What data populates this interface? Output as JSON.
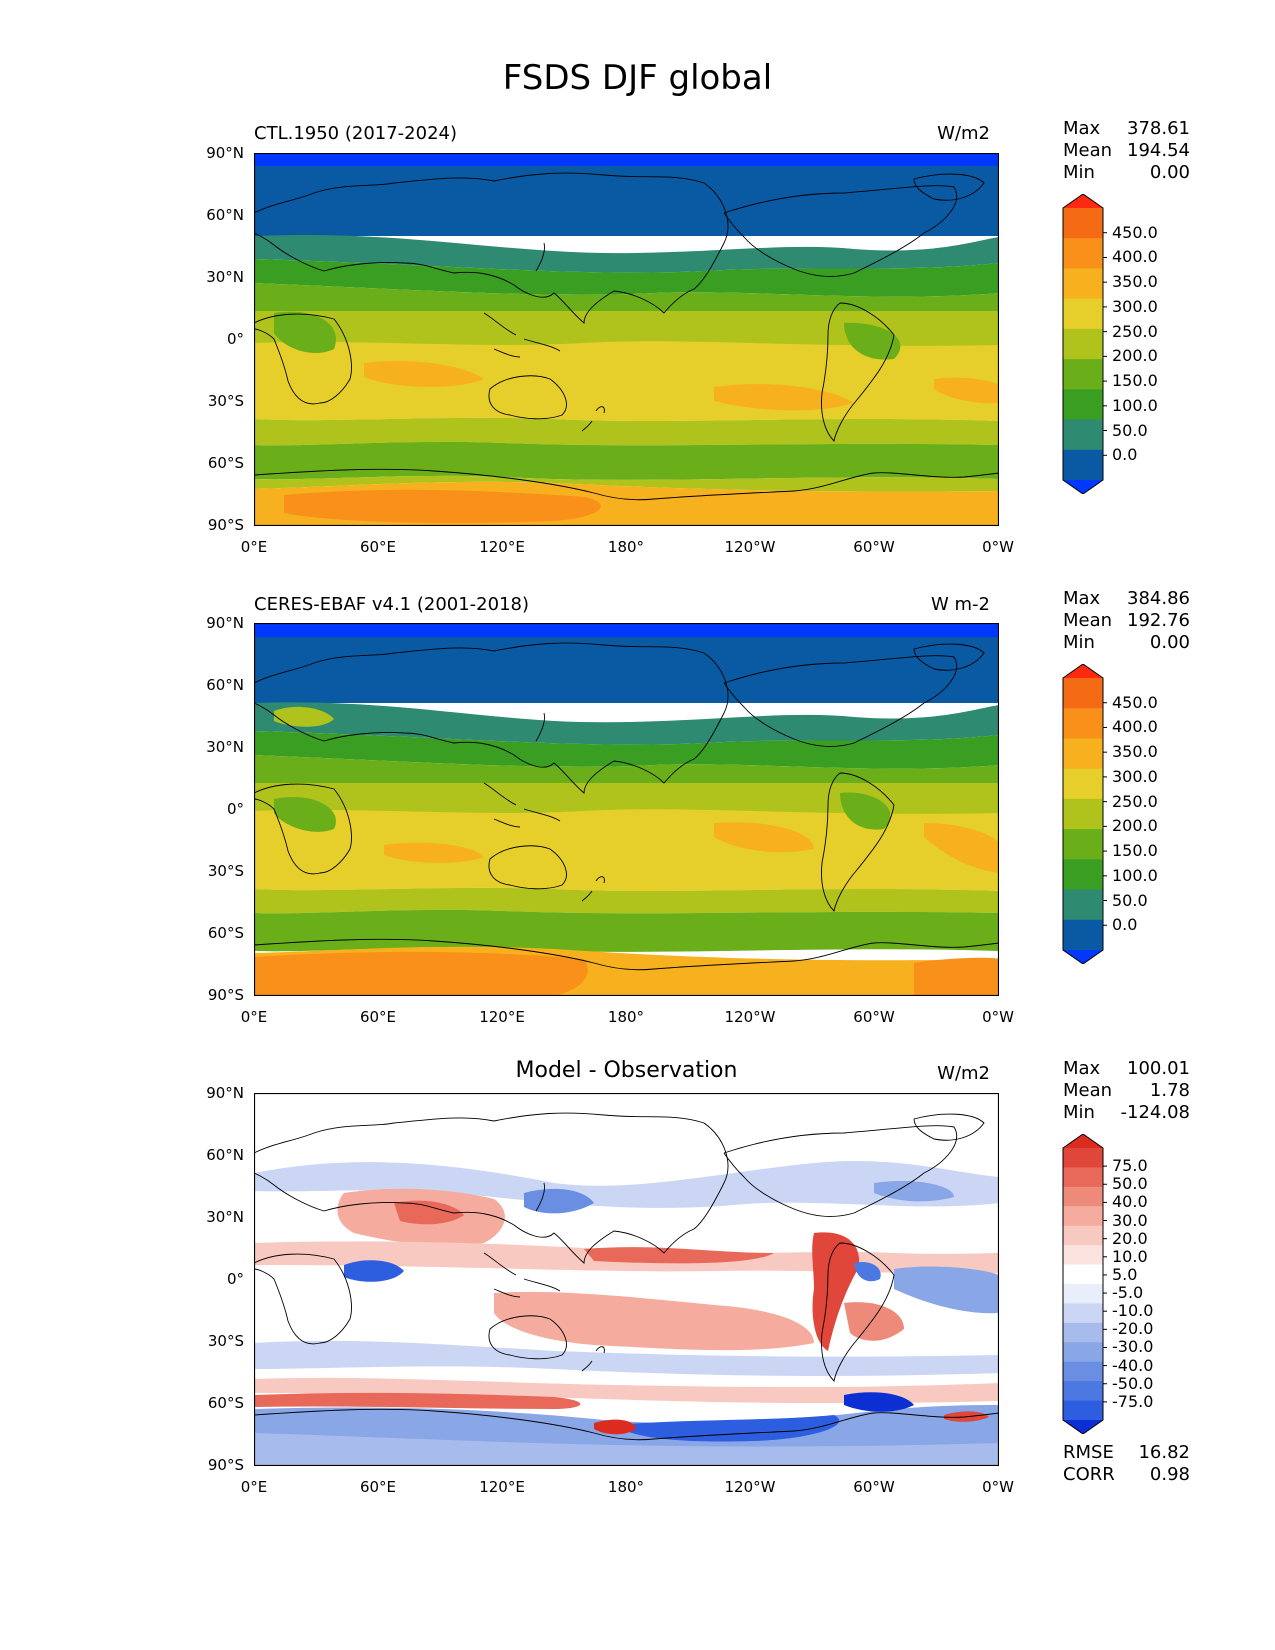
{
  "figure": {
    "title": "FSDS DJF global"
  },
  "colors": {
    "fsds": [
      "#0038ff",
      "#0a5aa3",
      "#2f8a72",
      "#3a9e23",
      "#6aaf1a",
      "#afc31c",
      "#e6cf2a",
      "#f7b11f",
      "#f8901a",
      "#f56a14",
      "#ff2a10"
    ],
    "diff": [
      "#0c2fd4",
      "#2d5ee0",
      "#4c78e2",
      "#6a8fe2",
      "#89a6e6",
      "#a8bbed",
      "#cbd6f5",
      "#e9eefb",
      "#ffffff",
      "#fbe4e0",
      "#f8c9c0",
      "#f5ab9e",
      "#ee8a7a",
      "#e8695a",
      "#e0463a",
      "#dc2b1f"
    ],
    "coast": "#000000"
  },
  "panels": [
    {
      "id": "model",
      "title": "CTL.1950 (2017-2024)",
      "units": "W/m2",
      "stats": {
        "max_label": "Max",
        "max": "378.61",
        "mean_label": "Mean",
        "mean": "194.54",
        "min_label": "Min",
        "min": "0.00"
      },
      "colorbar": {
        "ticks": [
          "450.0",
          "400.0",
          "350.0",
          "300.0",
          "250.0",
          "200.0",
          "150.0",
          "100.0",
          "50.0",
          "0.0"
        ]
      }
    },
    {
      "id": "obs",
      "title": "CERES-EBAF v4.1 (2001-2018)",
      "units": "W m-2",
      "stats": {
        "max_label": "Max",
        "max": "384.86",
        "mean_label": "Mean",
        "mean": "192.76",
        "min_label": "Min",
        "min": "0.00"
      },
      "colorbar": {
        "ticks": [
          "450.0",
          "400.0",
          "350.0",
          "300.0",
          "250.0",
          "200.0",
          "150.0",
          "100.0",
          "50.0",
          "0.0"
        ]
      }
    },
    {
      "id": "diff",
      "title": "Model - Observation",
      "units": "W/m2",
      "stats": {
        "max_label": "Max",
        "max": "100.01",
        "mean_label": "Mean",
        "mean": "1.78",
        "min_label": "Min",
        "min": "-124.08"
      },
      "colorbar": {
        "ticks": [
          "75.0",
          "50.0",
          "40.0",
          "30.0",
          "20.0",
          "10.0",
          "5.0",
          "-5.0",
          "-10.0",
          "-20.0",
          "-30.0",
          "-40.0",
          "-50.0",
          "-75.0"
        ]
      },
      "metrics": {
        "rmse_label": "RMSE",
        "rmse": "16.82",
        "corr_label": "CORR",
        "corr": "0.98"
      }
    }
  ],
  "axes": {
    "x_ticks": [
      "0°E",
      "60°E",
      "120°E",
      "180°",
      "120°W",
      "60°W",
      "0°W"
    ],
    "y_ticks": [
      "90°N",
      "60°N",
      "30°N",
      "0°",
      "30°S",
      "60°S",
      "90°S"
    ]
  }
}
